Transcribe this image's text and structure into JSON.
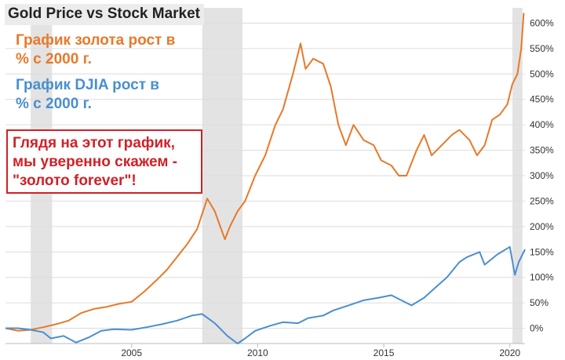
{
  "header": {
    "title": "Gold Price vs Stock Market"
  },
  "annotations": {
    "gold_label": [
      "График золота рост в",
      "% с 2000 г."
    ],
    "djia_label": [
      "График DJIA рост в",
      "% с 2000 г."
    ],
    "callout": [
      "Глядя на этот график,",
      "мы уверенно скажем -",
      "\"золото forever\"!"
    ]
  },
  "colors": {
    "gold": "#e8792a",
    "djia": "#4a8fce",
    "recession": "#e3e3e3",
    "callout": "#d02127",
    "grid": "#dddddd"
  },
  "chart_data": {
    "type": "line",
    "title": "Gold Price vs Stock Market",
    "xlabel": "",
    "ylabel": "",
    "xlim": [
      2000,
      2020.6
    ],
    "ylim": [
      -30,
      630
    ],
    "y_ticks": [
      0,
      50,
      100,
      150,
      200,
      250,
      300,
      350,
      400,
      450,
      500,
      550,
      600
    ],
    "y_tick_labels": [
      "0%",
      "50%",
      "100%",
      "150%",
      "200%",
      "250%",
      "300%",
      "350%",
      "400%",
      "450%",
      "500%",
      "550%",
      "600%"
    ],
    "x_ticks": [
      2005,
      2010,
      2015,
      2020
    ],
    "x_tick_labels": [
      "2005",
      "2010",
      "2015",
      "2020"
    ],
    "grid": "horizontal",
    "recession_bands": [
      [
        2001.0,
        2001.85
      ],
      [
        2007.8,
        2009.4
      ],
      [
        2020.1,
        2020.5
      ]
    ],
    "series": [
      {
        "name": "",
        "key": "gold",
        "x": [
          2000.0,
          2000.5,
          2001.0,
          2001.5,
          2002.0,
          2002.5,
          2003.0,
          2003.5,
          2004.0,
          2004.5,
          2005.0,
          2005.5,
          2006.0,
          2006.4,
          2006.8,
          2007.2,
          2007.6,
          2008.0,
          2008.3,
          2008.7,
          2008.9,
          2009.2,
          2009.5,
          2009.9,
          2010.3,
          2010.7,
          2011.0,
          2011.4,
          2011.7,
          2011.9,
          2012.2,
          2012.6,
          2012.9,
          2013.2,
          2013.5,
          2013.8,
          2014.2,
          2014.6,
          2014.9,
          2015.3,
          2015.6,
          2015.9,
          2016.3,
          2016.6,
          2016.9,
          2017.3,
          2017.7,
          2018.0,
          2018.4,
          2018.7,
          2019.0,
          2019.3,
          2019.6,
          2019.9,
          2020.1,
          2020.3,
          2020.45,
          2020.55
        ],
        "y": [
          0,
          -5,
          -3,
          2,
          8,
          15,
          30,
          38,
          42,
          48,
          52,
          72,
          95,
          115,
          140,
          165,
          195,
          255,
          230,
          175,
          200,
          230,
          250,
          300,
          340,
          400,
          430,
          500,
          560,
          510,
          530,
          520,
          475,
          400,
          360,
          400,
          370,
          360,
          330,
          320,
          300,
          300,
          350,
          380,
          340,
          360,
          380,
          390,
          370,
          340,
          360,
          410,
          420,
          440,
          480,
          500,
          550,
          620
        ]
      },
      {
        "name": "",
        "key": "djia",
        "x": [
          2000.0,
          2000.5,
          2001.0,
          2001.5,
          2001.8,
          2002.3,
          2002.8,
          2003.3,
          2003.8,
          2004.3,
          2005.0,
          2005.6,
          2006.2,
          2006.8,
          2007.4,
          2007.8,
          2008.3,
          2008.8,
          2009.2,
          2009.5,
          2009.9,
          2010.5,
          2011.0,
          2011.6,
          2012.0,
          2012.6,
          2013.0,
          2013.6,
          2014.2,
          2014.8,
          2015.3,
          2015.7,
          2016.1,
          2016.6,
          2017.0,
          2017.5,
          2018.0,
          2018.3,
          2018.8,
          2019.0,
          2019.5,
          2020.0,
          2020.2,
          2020.35,
          2020.6
        ],
        "y": [
          0,
          0,
          -3,
          -8,
          -20,
          -15,
          -28,
          -18,
          -5,
          -2,
          -3,
          2,
          8,
          15,
          25,
          28,
          10,
          -15,
          -30,
          -20,
          -5,
          5,
          12,
          10,
          20,
          25,
          35,
          45,
          55,
          60,
          65,
          55,
          45,
          60,
          78,
          100,
          130,
          140,
          150,
          125,
          145,
          160,
          105,
          130,
          155
        ]
      }
    ]
  }
}
